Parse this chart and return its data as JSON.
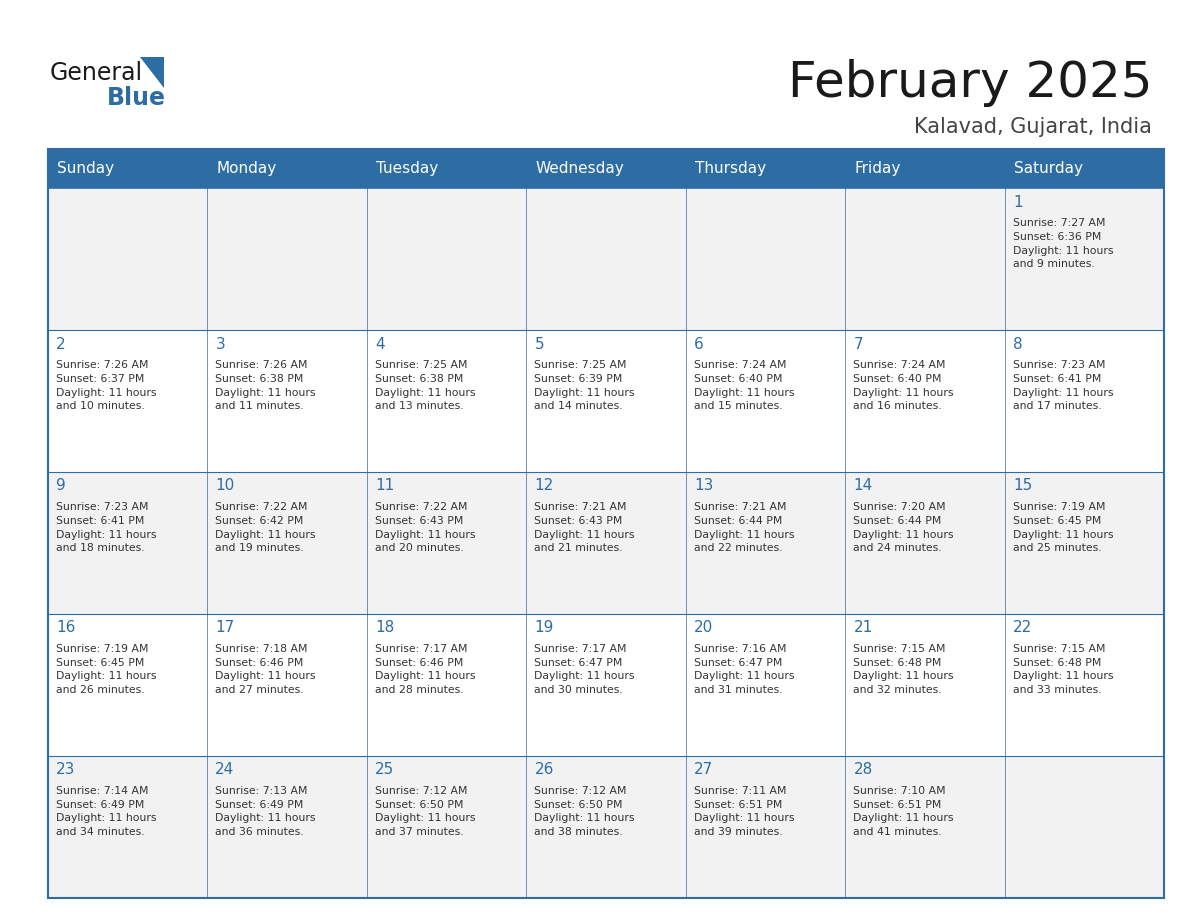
{
  "title": "February 2025",
  "subtitle": "Kalavad, Gujarat, India",
  "header_bg": "#2E6DA4",
  "header_text_color": "#FFFFFF",
  "cell_bg_light": "#F2F2F2",
  "cell_bg_white": "#FFFFFF",
  "border_color": "#2E6DA4",
  "day_headers": [
    "Sunday",
    "Monday",
    "Tuesday",
    "Wednesday",
    "Thursday",
    "Friday",
    "Saturday"
  ],
  "title_color": "#1a1a1a",
  "subtitle_color": "#444444",
  "day_number_color": "#2E6DA4",
  "cell_text_color": "#333333",
  "logo_general_color": "#1a1a1a",
  "logo_blue_color": "#2E6DA4",
  "calendar_data": [
    [
      null,
      null,
      null,
      null,
      null,
      null,
      {
        "day": 1,
        "sunrise": "7:27 AM",
        "sunset": "6:36 PM",
        "daylight": "11 hours\nand 9 minutes."
      }
    ],
    [
      {
        "day": 2,
        "sunrise": "7:26 AM",
        "sunset": "6:37 PM",
        "daylight": "11 hours\nand 10 minutes."
      },
      {
        "day": 3,
        "sunrise": "7:26 AM",
        "sunset": "6:38 PM",
        "daylight": "11 hours\nand 11 minutes."
      },
      {
        "day": 4,
        "sunrise": "7:25 AM",
        "sunset": "6:38 PM",
        "daylight": "11 hours\nand 13 minutes."
      },
      {
        "day": 5,
        "sunrise": "7:25 AM",
        "sunset": "6:39 PM",
        "daylight": "11 hours\nand 14 minutes."
      },
      {
        "day": 6,
        "sunrise": "7:24 AM",
        "sunset": "6:40 PM",
        "daylight": "11 hours\nand 15 minutes."
      },
      {
        "day": 7,
        "sunrise": "7:24 AM",
        "sunset": "6:40 PM",
        "daylight": "11 hours\nand 16 minutes."
      },
      {
        "day": 8,
        "sunrise": "7:23 AM",
        "sunset": "6:41 PM",
        "daylight": "11 hours\nand 17 minutes."
      }
    ],
    [
      {
        "day": 9,
        "sunrise": "7:23 AM",
        "sunset": "6:41 PM",
        "daylight": "11 hours\nand 18 minutes."
      },
      {
        "day": 10,
        "sunrise": "7:22 AM",
        "sunset": "6:42 PM",
        "daylight": "11 hours\nand 19 minutes."
      },
      {
        "day": 11,
        "sunrise": "7:22 AM",
        "sunset": "6:43 PM",
        "daylight": "11 hours\nand 20 minutes."
      },
      {
        "day": 12,
        "sunrise": "7:21 AM",
        "sunset": "6:43 PM",
        "daylight": "11 hours\nand 21 minutes."
      },
      {
        "day": 13,
        "sunrise": "7:21 AM",
        "sunset": "6:44 PM",
        "daylight": "11 hours\nand 22 minutes."
      },
      {
        "day": 14,
        "sunrise": "7:20 AM",
        "sunset": "6:44 PM",
        "daylight": "11 hours\nand 24 minutes."
      },
      {
        "day": 15,
        "sunrise": "7:19 AM",
        "sunset": "6:45 PM",
        "daylight": "11 hours\nand 25 minutes."
      }
    ],
    [
      {
        "day": 16,
        "sunrise": "7:19 AM",
        "sunset": "6:45 PM",
        "daylight": "11 hours\nand 26 minutes."
      },
      {
        "day": 17,
        "sunrise": "7:18 AM",
        "sunset": "6:46 PM",
        "daylight": "11 hours\nand 27 minutes."
      },
      {
        "day": 18,
        "sunrise": "7:17 AM",
        "sunset": "6:46 PM",
        "daylight": "11 hours\nand 28 minutes."
      },
      {
        "day": 19,
        "sunrise": "7:17 AM",
        "sunset": "6:47 PM",
        "daylight": "11 hours\nand 30 minutes."
      },
      {
        "day": 20,
        "sunrise": "7:16 AM",
        "sunset": "6:47 PM",
        "daylight": "11 hours\nand 31 minutes."
      },
      {
        "day": 21,
        "sunrise": "7:15 AM",
        "sunset": "6:48 PM",
        "daylight": "11 hours\nand 32 minutes."
      },
      {
        "day": 22,
        "sunrise": "7:15 AM",
        "sunset": "6:48 PM",
        "daylight": "11 hours\nand 33 minutes."
      }
    ],
    [
      {
        "day": 23,
        "sunrise": "7:14 AM",
        "sunset": "6:49 PM",
        "daylight": "11 hours\nand 34 minutes."
      },
      {
        "day": 24,
        "sunrise": "7:13 AM",
        "sunset": "6:49 PM",
        "daylight": "11 hours\nand 36 minutes."
      },
      {
        "day": 25,
        "sunrise": "7:12 AM",
        "sunset": "6:50 PM",
        "daylight": "11 hours\nand 37 minutes."
      },
      {
        "day": 26,
        "sunrise": "7:12 AM",
        "sunset": "6:50 PM",
        "daylight": "11 hours\nand 38 minutes."
      },
      {
        "day": 27,
        "sunrise": "7:11 AM",
        "sunset": "6:51 PM",
        "daylight": "11 hours\nand 39 minutes."
      },
      {
        "day": 28,
        "sunrise": "7:10 AM",
        "sunset": "6:51 PM",
        "daylight": "11 hours\nand 41 minutes."
      },
      null
    ]
  ]
}
